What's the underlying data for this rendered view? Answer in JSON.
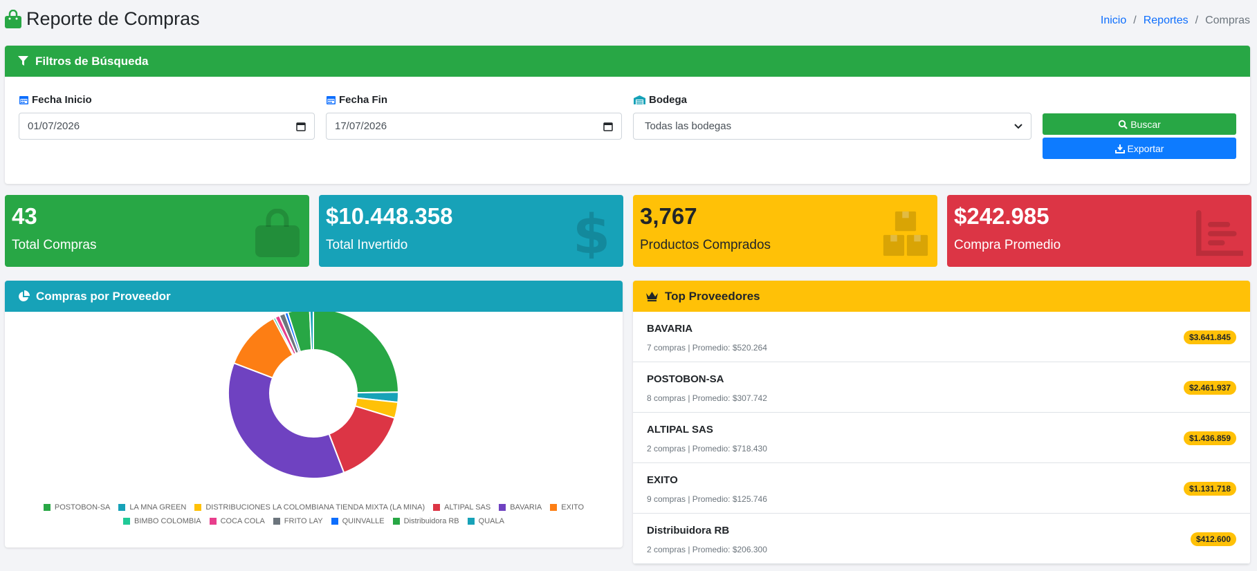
{
  "header": {
    "title": "Reporte de Compras",
    "breadcrumb": [
      "Inicio",
      "Reportes",
      "Compras"
    ]
  },
  "filters": {
    "title": "Filtros de Búsqueda",
    "fecha_inicio_label": "Fecha Inicio",
    "fecha_inicio_value": "01/07/2026",
    "fecha_fin_label": "Fecha Fin",
    "fecha_fin_value": "17/07/2026",
    "bodega_label": "Bodega",
    "bodega_value": "Todas las bodegas",
    "buscar_label": "Buscar",
    "exportar_label": "Exportar"
  },
  "stats": {
    "total_compras": {
      "value": "43",
      "label": "Total Compras"
    },
    "total_invertido": {
      "value": "$10.448.358",
      "label": "Total Invertido"
    },
    "productos": {
      "value": "3,767",
      "label": "Productos Comprados"
    },
    "promedio": {
      "value": "$242.985",
      "label": "Compra Promedio"
    }
  },
  "chart_card": {
    "title": "Compras por Proveedor"
  },
  "chart_data": {
    "type": "pie",
    "categories": [
      "POSTOBON-SA",
      "LA MNA GREEN",
      "DISTRIBUCIONES LA COLOMBIANA TIENDA MIXTA (LA MINA)",
      "ALTIPAL SAS",
      "BAVARIA",
      "EXITO",
      "BIMBO COLOMBIA",
      "COCA COLA",
      "FRITO LAY",
      "QUINVALLE",
      "Distribuidora RB",
      "QUALA"
    ],
    "values": [
      2461937,
      190000,
      300000,
      1436859,
      3641845,
      1131718,
      40000,
      85000,
      110000,
      60000,
      412600,
      70000
    ],
    "colors": [
      "#28a745",
      "#17a2b8",
      "#ffc107",
      "#dc3545",
      "#6f42c1",
      "#fd7e14",
      "#20c997",
      "#e83e8c",
      "#6c757d",
      "#0d6efd",
      "#28a745",
      "#17a2b8"
    ]
  },
  "top": {
    "title": "Top Proveedores",
    "items": [
      {
        "name": "BAVARIA",
        "meta": "7 compras | Promedio: $520.264",
        "total": "$3.641.845"
      },
      {
        "name": "POSTOBON-SA",
        "meta": "8 compras | Promedio: $307.742",
        "total": "$2.461.937"
      },
      {
        "name": "ALTIPAL SAS",
        "meta": "2 compras | Promedio: $718.430",
        "total": "$1.436.859"
      },
      {
        "name": "EXITO",
        "meta": "9 compras | Promedio: $125.746",
        "total": "$1.131.718"
      },
      {
        "name": "Distribuidora RB",
        "meta": "2 compras | Promedio: $206.300",
        "total": "$412.600"
      }
    ]
  },
  "icons": {
    "title": "shopping-bag-icon",
    "filters": "filter-icon",
    "calendar": "calendar-icon",
    "warehouse": "warehouse-icon",
    "search": "search-icon",
    "download": "download-icon",
    "chart": "pie-chart-icon",
    "crown": "crown-icon"
  }
}
